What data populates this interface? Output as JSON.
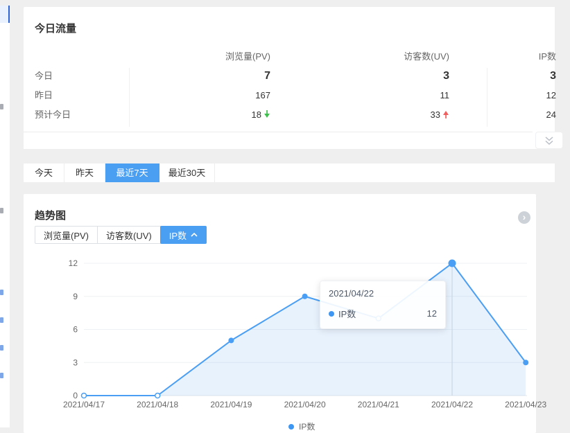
{
  "colors": {
    "accent": "#4b9ff2",
    "line": "#4a9ef3",
    "area": "rgba(76,158,243,0.13)",
    "down_green": "#3fbf4d",
    "up_red": "#f25e5e"
  },
  "traffic_card": {
    "title": "今日流量",
    "columns": [
      "浏览量(PV)",
      "访客数(UV)",
      "IP数"
    ],
    "rows": [
      {
        "label": "今日",
        "values": [
          "7",
          "3",
          "3"
        ]
      },
      {
        "label": "昨日",
        "values": [
          "167",
          "11",
          "12"
        ]
      },
      {
        "label": "预计今日",
        "values": [
          "18",
          "33",
          "24"
        ],
        "trends": [
          "down",
          "up",
          null
        ]
      }
    ]
  },
  "range_tabs": [
    {
      "label": "今天",
      "active": false
    },
    {
      "label": "昨天",
      "active": false
    },
    {
      "label": "最近7天",
      "active": true
    },
    {
      "label": "最近30天",
      "active": false
    }
  ],
  "trend_card": {
    "title": "趋势图",
    "metric_buttons": [
      {
        "label": "浏览量(PV)",
        "active": false
      },
      {
        "label": "访客数(UV)",
        "active": false
      },
      {
        "label": "IP数",
        "active": true
      }
    ],
    "tooltip": {
      "title": "2021/04/22",
      "series_label": "IP数",
      "value": "12"
    },
    "legend_label": "IP数"
  },
  "chart_data": {
    "type": "area",
    "title": "趋势图",
    "x": [
      "2021/04/17",
      "2021/04/18",
      "2021/04/19",
      "2021/04/20",
      "2021/04/21",
      "2021/04/22",
      "2021/04/23"
    ],
    "series": [
      {
        "name": "IP数",
        "values": [
          0,
          0,
          5,
          9,
          7,
          12,
          3
        ]
      }
    ],
    "ylim": [
      0,
      12
    ],
    "yticks": [
      0,
      3,
      6,
      9,
      12
    ],
    "grid": true,
    "legend_position": "bottom",
    "highlight_x": "2021/04/22",
    "highlight_value": 12
  }
}
